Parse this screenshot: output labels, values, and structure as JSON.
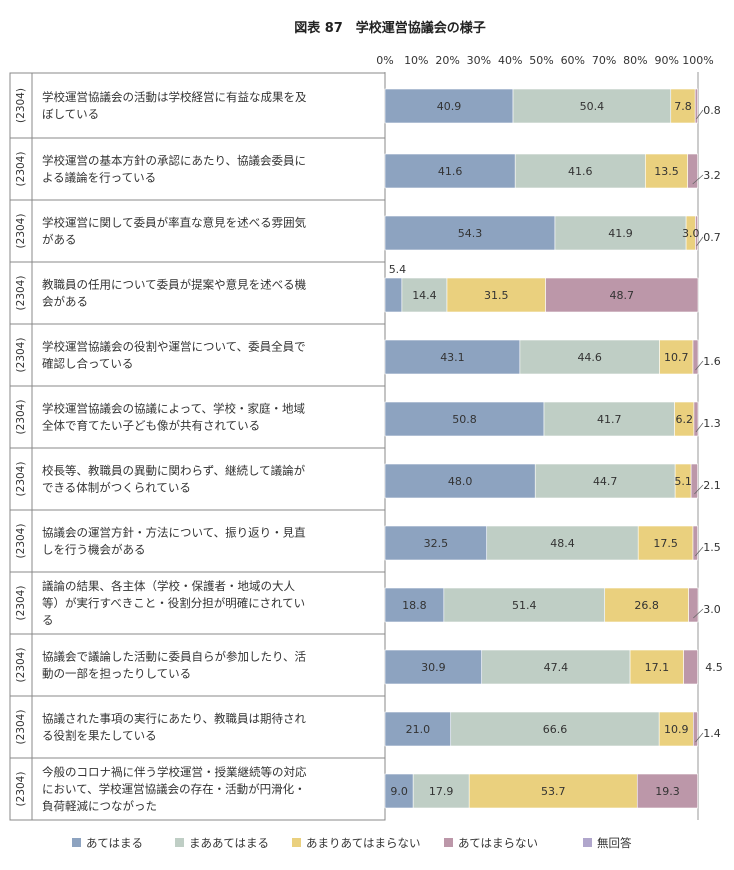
{
  "chart_data": {
    "type": "bar",
    "orientation": "horizontal",
    "stacked": "100%",
    "title": "図表 87　学校運営協議会の様子",
    "x_ticks": [
      "0%",
      "10%",
      "20%",
      "30%",
      "40%",
      "50%",
      "60%",
      "70%",
      "80%",
      "90%",
      "100%"
    ],
    "xlim": [
      0,
      100
    ],
    "legend_position": "bottom",
    "categories": [
      {
        "n": "(2304)",
        "label_lines": [
          "学校運営協議会の活動は学校経営に有益な成果を及",
          "ぼしている"
        ]
      },
      {
        "n": "(2304)",
        "label_lines": [
          "学校運営の基本方針の承認にあたり、協議会委員に",
          "よる議論を行っている"
        ]
      },
      {
        "n": "(2304)",
        "label_lines": [
          "学校運営に関して委員が率直な意見を述べる雰囲気",
          "がある"
        ]
      },
      {
        "n": "(2304)",
        "label_lines": [
          "教職員の任用について委員が提案や意見を述べる機",
          "会がある"
        ]
      },
      {
        "n": "(2304)",
        "label_lines": [
          "学校運営協議会の役割や運営について、委員全員で",
          "確認し合っている"
        ]
      },
      {
        "n": "(2304)",
        "label_lines": [
          "学校運営協議会の協議によって、学校・家庭・地域",
          "全体で育てたい子ども像が共有されている"
        ]
      },
      {
        "n": "(2304)",
        "label_lines": [
          "校長等、教職員の異動に関わらず、継続して議論が",
          "できる体制がつくられている"
        ]
      },
      {
        "n": "(2304)",
        "label_lines": [
          "協議会の運営方針・方法について、振り返り・見直",
          "しを行う機会がある"
        ]
      },
      {
        "n": "(2304)",
        "label_lines": [
          "議論の結果、各主体（学校・保護者・地域の大人",
          "等）が実行すべきこと・役割分担が明確にされてい",
          "る"
        ]
      },
      {
        "n": "(2304)",
        "label_lines": [
          "協議会で議論した活動に委員自らが参加したり、活",
          "動の一部を担ったりしている"
        ]
      },
      {
        "n": "(2304)",
        "label_lines": [
          "協議された事項の実行にあたり、教職員は期待され",
          "る役割を果たしている"
        ]
      },
      {
        "n": "(2304)",
        "label_lines": [
          "今般のコロナ禍に伴う学校運営・授業継続等の対応",
          "において、学校運営協議会の存在・活動が円滑化・",
          "負荷軽減につながった"
        ]
      }
    ],
    "series": [
      {
        "name": "あてはまる",
        "color": "#8da3c0",
        "values": [
          40.9,
          41.6,
          54.3,
          5.4,
          43.1,
          50.8,
          48.0,
          32.5,
          18.8,
          30.9,
          21.0,
          9.0
        ],
        "labels": [
          "40.9",
          "41.6",
          "54.3",
          "5.4",
          "43.1",
          "50.8",
          "48.0",
          "32.5",
          "18.8",
          "30.9",
          "21.0",
          "9.0"
        ]
      },
      {
        "name": "まああてはまる",
        "color": "#bfcec5",
        "values": [
          50.4,
          41.6,
          41.9,
          14.4,
          44.6,
          41.7,
          44.7,
          48.4,
          51.4,
          47.4,
          66.6,
          17.9
        ],
        "labels": [
          "50.4",
          "41.6",
          "41.9",
          "14.4",
          "44.6",
          "41.7",
          "44.7",
          "48.4",
          "51.4",
          "47.4",
          "66.6",
          "17.9"
        ]
      },
      {
        "name": "あまりあてはまらない",
        "color": "#ead07e",
        "values": [
          7.8,
          13.5,
          3.0,
          31.5,
          10.7,
          6.2,
          5.1,
          17.5,
          26.8,
          17.1,
          10.9,
          53.7
        ],
        "labels": [
          "7.8",
          "13.5",
          "3.0",
          "31.5",
          "10.7",
          "6.2",
          "5.1",
          "17.5",
          "26.8",
          "17.1",
          "10.9",
          "53.7"
        ]
      },
      {
        "name": "あてはまらない",
        "color": "#bc97a9",
        "values": [
          0.8,
          3.2,
          0.7,
          48.7,
          1.6,
          1.3,
          2.1,
          1.5,
          3.0,
          4.5,
          1.4,
          19.3
        ],
        "labels": [
          "0.8",
          "3.2",
          "0.7",
          "48.7",
          "1.6",
          "1.3",
          "2.1",
          "1.5",
          "3.0",
          "4.5",
          "1.4",
          "19.3"
        ]
      },
      {
        "name": "無回答",
        "color": "#b0a6cc",
        "values": [
          0,
          0,
          0,
          0,
          0,
          0,
          0,
          0,
          0,
          0,
          0,
          0
        ],
        "labels": []
      }
    ]
  }
}
